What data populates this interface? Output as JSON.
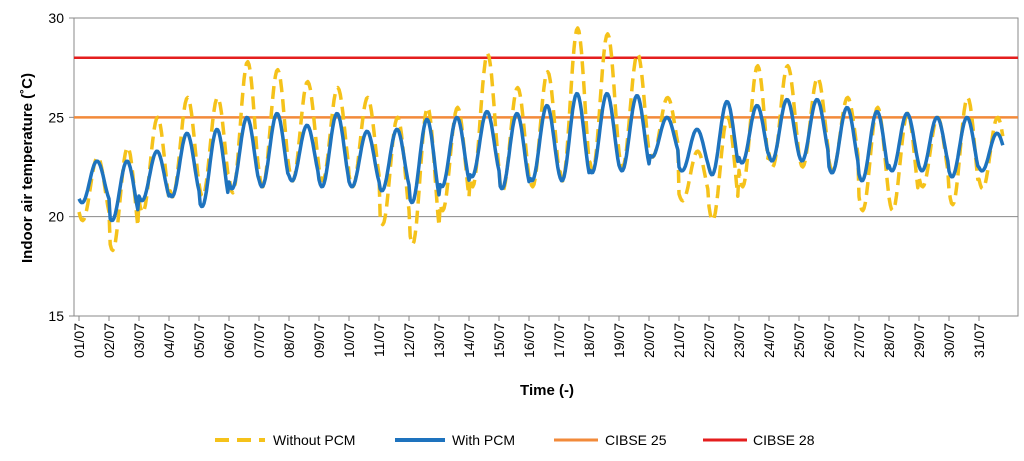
{
  "chart_data": {
    "type": "line",
    "title": "",
    "xlabel": "Time (-)",
    "ylabel": "Indoor air temperature (˚C)",
    "ylim": [
      15,
      30
    ],
    "yticks": [
      15,
      20,
      25,
      30
    ],
    "grid": "horizontal",
    "legend_position": "bottom",
    "categories": [
      "01/07",
      "02/07",
      "03/07",
      "04/07",
      "05/07",
      "06/07",
      "07/07",
      "08/07",
      "09/07",
      "10/07",
      "11/07",
      "12/07",
      "13/07",
      "14/07",
      "15/07",
      "16/07",
      "17/07",
      "18/07",
      "19/07",
      "20/07",
      "21/07",
      "22/07",
      "23/07",
      "24/07",
      "25/07",
      "26/07",
      "27/07",
      "28/07",
      "29/07",
      "30/07",
      "31/07"
    ],
    "series": [
      {
        "name": "Without PCM",
        "color": "#F5C21A",
        "style": "dashed",
        "daily_min": [
          19.8,
          18.3,
          20.2,
          21.0,
          21.0,
          21.2,
          21.5,
          21.8,
          21.8,
          21.5,
          19.6,
          18.6,
          20.3,
          21.5,
          21.3,
          21.5,
          21.8,
          22.3,
          22.5,
          23.0,
          20.8,
          19.8,
          21.5,
          22.5,
          22.5,
          22.3,
          20.3,
          20.3,
          21.5,
          20.6,
          21.4
        ],
        "daily_max": [
          23.0,
          23.5,
          25.0,
          26.0,
          26.0,
          27.8,
          27.4,
          26.8,
          26.5,
          26.0,
          25.0,
          25.5,
          25.5,
          28.2,
          26.5,
          27.3,
          29.5,
          29.2,
          28.2,
          26.0,
          23.3,
          25.0,
          27.6,
          27.6,
          27.0,
          26.0,
          25.5,
          25.2,
          25.0,
          26.0,
          25.0
        ]
      },
      {
        "name": "With PCM",
        "color": "#1E73BE",
        "style": "solid",
        "daily_min": [
          20.7,
          19.8,
          20.8,
          21.0,
          20.5,
          21.4,
          21.5,
          21.8,
          21.5,
          21.5,
          21.3,
          20.7,
          21.5,
          22.0,
          21.4,
          21.8,
          21.8,
          22.2,
          22.3,
          23.0,
          22.3,
          22.1,
          22.7,
          22.8,
          22.8,
          22.2,
          21.8,
          22.3,
          22.3,
          22.0,
          22.3
        ],
        "daily_max": [
          22.8,
          22.8,
          23.3,
          24.2,
          24.4,
          25.0,
          25.2,
          24.6,
          25.2,
          24.3,
          24.4,
          24.9,
          25.0,
          25.3,
          25.2,
          25.6,
          26.2,
          26.2,
          26.1,
          25.0,
          24.4,
          25.8,
          25.6,
          25.9,
          25.9,
          25.5,
          25.3,
          25.2,
          25.0,
          25.0,
          24.2
        ]
      },
      {
        "name": "CIBSE 25",
        "color": "#F28A3A",
        "style": "solid",
        "value": 25
      },
      {
        "name": "CIBSE 28",
        "color": "#E41E1E",
        "style": "solid",
        "value": 28
      }
    ]
  }
}
